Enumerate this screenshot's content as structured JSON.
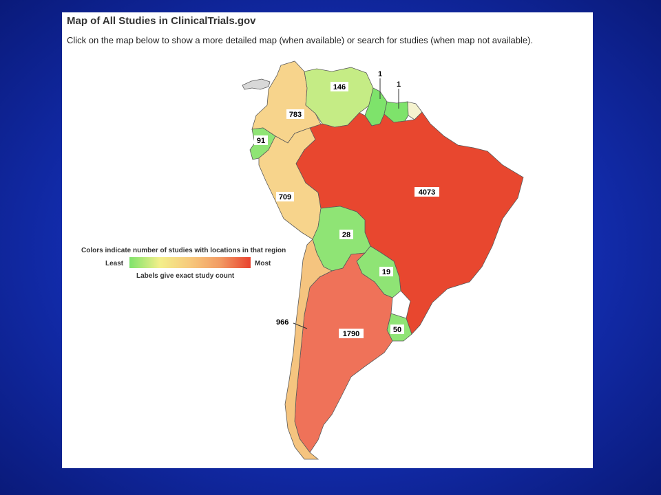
{
  "page": {
    "title": "Map of All Studies in ClinicalTrials.gov",
    "subtitle": "Click on the map below to show a more detailed map (when available) or search for studies (when map not available)."
  },
  "legend": {
    "heading": "Colors indicate number of studies with locations in that region",
    "least": "Least",
    "most": "Most",
    "note": "Labels give exact study count",
    "colors": [
      "#7ee36b",
      "#f3ef8a",
      "#f7c97c",
      "#f29a63",
      "#e8432f"
    ]
  },
  "countries": {
    "brazil": {
      "count": "4073",
      "color": "#e8472f"
    },
    "argentina": {
      "count": "1790",
      "color": "#ef7259"
    },
    "chile": {
      "count": "966",
      "color": "#f5c47f"
    },
    "colombia": {
      "count": "783",
      "color": "#f7d48c"
    },
    "peru": {
      "count": "709",
      "color": "#f7d48c"
    },
    "venezuela": {
      "count": "146",
      "color": "#c5ec85"
    },
    "ecuador": {
      "count": "91",
      "color": "#8fe475"
    },
    "uruguay": {
      "count": "50",
      "color": "#8fe475"
    },
    "bolivia": {
      "count": "28",
      "color": "#8fe475"
    },
    "paraguay": {
      "count": "19",
      "color": "#8fe475"
    },
    "guyana": {
      "count": "1",
      "color": "#7ee36b"
    },
    "suriname": {
      "count": "1",
      "color": "#7ee36b"
    },
    "french_guiana": {
      "color": "#f5f3cf"
    },
    "panama": {
      "color": "#d8d8d8"
    }
  }
}
